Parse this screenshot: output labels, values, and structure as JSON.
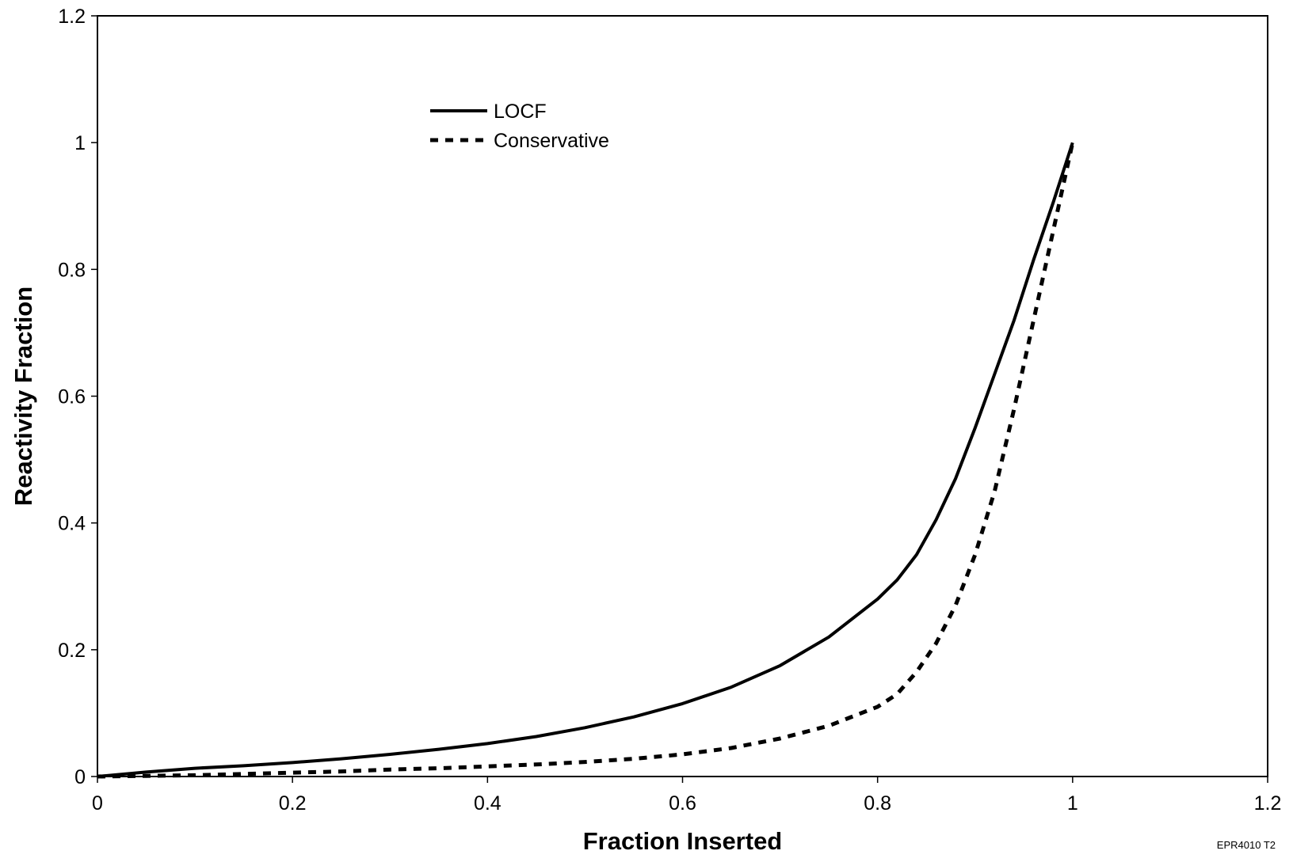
{
  "chart_data": {
    "type": "line",
    "xlabel": "Fraction Inserted",
    "ylabel": "Reactivity Fraction",
    "xlim": [
      0,
      1.2
    ],
    "ylim": [
      0,
      1.2
    ],
    "x_ticks": [
      "0",
      "0.2",
      "0.4",
      "0.6",
      "0.8",
      "1",
      "1.2"
    ],
    "y_ticks": [
      "0",
      "0.2",
      "0.4",
      "0.6",
      "0.8",
      "1",
      "1.2"
    ],
    "grid": false,
    "legend_position": "top-center",
    "series": [
      {
        "name": "LOCF",
        "style": "solid",
        "color": "#000000",
        "x": [
          0,
          0.05,
          0.1,
          0.15,
          0.2,
          0.25,
          0.3,
          0.35,
          0.4,
          0.45,
          0.5,
          0.55,
          0.6,
          0.65,
          0.7,
          0.75,
          0.8,
          0.82,
          0.84,
          0.86,
          0.88,
          0.9,
          0.92,
          0.94,
          0.96,
          0.98,
          1.0
        ],
        "y": [
          0,
          0.007,
          0.013,
          0.017,
          0.022,
          0.028,
          0.035,
          0.043,
          0.052,
          0.063,
          0.077,
          0.094,
          0.115,
          0.141,
          0.175,
          0.22,
          0.28,
          0.31,
          0.35,
          0.405,
          0.47,
          0.55,
          0.635,
          0.72,
          0.815,
          0.905,
          1.0
        ]
      },
      {
        "name": "Conservative",
        "style": "dashed",
        "color": "#000000",
        "x": [
          0,
          0.05,
          0.1,
          0.15,
          0.2,
          0.25,
          0.3,
          0.35,
          0.4,
          0.45,
          0.5,
          0.55,
          0.6,
          0.65,
          0.7,
          0.75,
          0.8,
          0.82,
          0.84,
          0.86,
          0.88,
          0.9,
          0.92,
          0.94,
          0.96,
          0.98,
          1.0
        ],
        "y": [
          0,
          0.001,
          0.002,
          0.004,
          0.006,
          0.008,
          0.011,
          0.013,
          0.016,
          0.019,
          0.023,
          0.028,
          0.035,
          0.045,
          0.06,
          0.08,
          0.11,
          0.13,
          0.165,
          0.21,
          0.27,
          0.35,
          0.45,
          0.58,
          0.72,
          0.86,
          1.0
        ]
      }
    ]
  },
  "figure_id": "EPR4010 T2"
}
